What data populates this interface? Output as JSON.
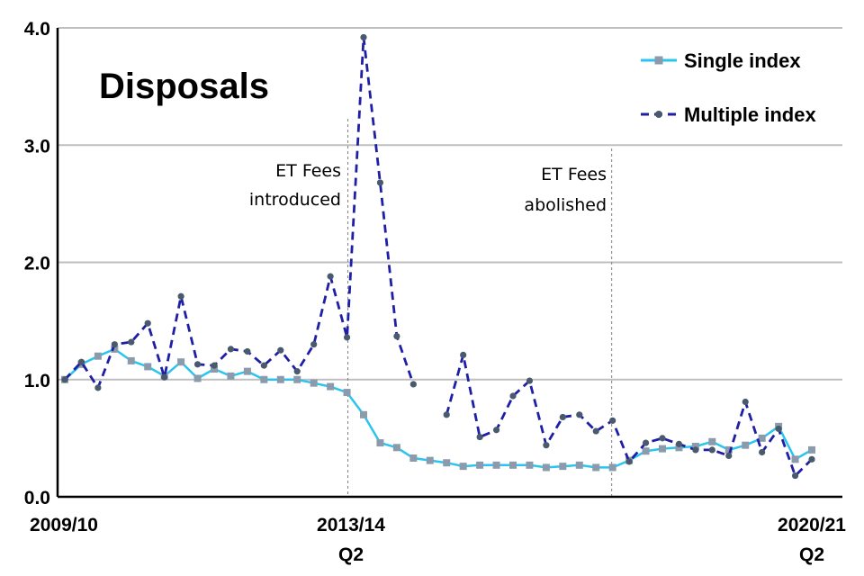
{
  "chart_data": {
    "type": "line",
    "title": "Disposals",
    "ylim": [
      0,
      4.0
    ],
    "y_ticks": [
      "0.0",
      "1.0",
      "2.0",
      "3.0",
      "4.0"
    ],
    "x_tick_labels": [
      {
        "line1": "2009/10",
        "line2": ""
      },
      {
        "line1": "2013/14",
        "line2": "Q2"
      },
      {
        "line1": "2020/21",
        "line2": "Q2"
      }
    ],
    "grid": "horizontal",
    "legend_position": "top-right",
    "series": [
      {
        "name": "Single index",
        "color": "#29c5ee",
        "marker_color": "#8c9bab",
        "marker": "square",
        "line_style": "solid",
        "values": [
          1.0,
          1.13,
          1.2,
          1.26,
          1.16,
          1.11,
          1.03,
          1.15,
          1.01,
          1.09,
          1.03,
          1.07,
          1.0,
          1.0,
          1.0,
          0.97,
          0.94,
          0.89,
          0.7,
          0.46,
          0.42,
          0.33,
          0.31,
          0.29,
          0.26,
          0.27,
          0.27,
          0.27,
          0.27,
          0.25,
          0.26,
          0.27,
          0.25,
          0.25,
          0.31,
          0.39,
          0.41,
          0.42,
          0.43,
          0.47,
          0.4,
          0.44,
          0.5,
          0.6,
          0.32,
          0.4
        ]
      },
      {
        "name": "Multiple index",
        "color": "#1f1fa6",
        "marker_color": "#4a5a6e",
        "marker": "circle",
        "line_style": "dashed",
        "values": [
          1.0,
          1.15,
          0.93,
          1.3,
          1.32,
          1.48,
          1.02,
          1.71,
          1.13,
          1.12,
          1.26,
          1.24,
          1.12,
          1.25,
          1.07,
          1.3,
          1.88,
          1.36,
          3.92,
          2.68,
          1.37,
          0.96,
          null,
          0.7,
          1.21,
          0.51,
          0.57,
          0.86,
          0.99,
          0.44,
          0.68,
          0.7,
          0.56,
          0.65,
          0.3,
          0.46,
          0.5,
          0.45,
          0.4,
          0.4,
          0.35,
          0.81,
          0.38,
          0.58,
          0.18,
          0.32
        ]
      }
    ],
    "annotations": [
      {
        "lines": [
          "ET Fees",
          "introduced"
        ],
        "at_index": 17
      },
      {
        "lines": [
          "ET Fees",
          "abolished"
        ],
        "at_index": 33
      }
    ]
  }
}
